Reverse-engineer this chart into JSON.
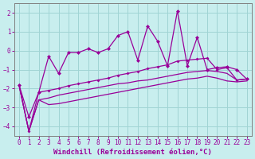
{
  "x": [
    0,
    1,
    2,
    3,
    4,
    5,
    6,
    7,
    8,
    9,
    10,
    11,
    12,
    13,
    14,
    15,
    16,
    17,
    18,
    19,
    20,
    21,
    22,
    23
  ],
  "y_main": [
    -1.8,
    -3.5,
    -2.2,
    -0.3,
    -1.2,
    -0.1,
    -0.1,
    0.1,
    -0.1,
    0.1,
    0.8,
    1.0,
    -0.5,
    1.3,
    0.5,
    -0.8,
    2.1,
    -0.8,
    0.7,
    -1.0,
    -0.9,
    -0.85,
    -1.0,
    -1.5
  ],
  "y_upper": [
    -1.8,
    -4.25,
    -2.2,
    -2.1,
    -2.0,
    -1.85,
    -1.75,
    -1.65,
    -1.55,
    -1.45,
    -1.3,
    -1.2,
    -1.1,
    -0.95,
    -0.85,
    -0.75,
    -0.55,
    -0.5,
    -0.45,
    -0.4,
    -1.0,
    -0.9,
    -1.55,
    -1.5
  ],
  "y_lower": [
    -1.8,
    -4.25,
    -2.6,
    -2.85,
    -2.8,
    -2.7,
    -2.6,
    -2.5,
    -2.4,
    -2.3,
    -2.2,
    -2.1,
    -2.0,
    -1.9,
    -1.8,
    -1.7,
    -1.6,
    -1.5,
    -1.45,
    -1.35,
    -1.45,
    -1.6,
    -1.65,
    -1.6
  ],
  "y_linear_upper": [
    -1.8,
    -4.25,
    -2.6,
    -2.5,
    -2.35,
    -2.25,
    -2.15,
    -2.05,
    -1.95,
    -1.85,
    -1.75,
    -1.7,
    -1.6,
    -1.55,
    -1.45,
    -1.35,
    -1.25,
    -1.15,
    -1.1,
    -1.05,
    -1.1,
    -1.2,
    -1.55,
    -1.5
  ],
  "line_color": "#990099",
  "bg_color": "#c8eeee",
  "grid_color": "#a0d4d4",
  "xlabel": "Windchill (Refroidissement éolien,°C)",
  "xlim": [
    -0.5,
    23.5
  ],
  "ylim": [
    -4.5,
    2.5
  ],
  "yticks": [
    -4,
    -3,
    -2,
    -1,
    0,
    1,
    2
  ],
  "xticks": [
    0,
    1,
    2,
    3,
    4,
    5,
    6,
    7,
    8,
    9,
    10,
    11,
    12,
    13,
    14,
    15,
    16,
    17,
    18,
    19,
    20,
    21,
    22,
    23
  ]
}
